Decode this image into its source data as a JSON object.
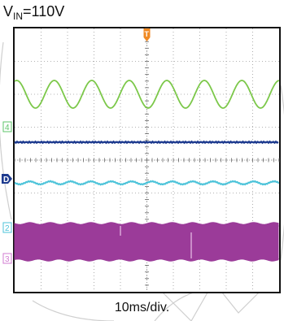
{
  "header": {
    "v_prefix": "V",
    "v_sub": "IN",
    "v_suffix": "=110V"
  },
  "xaxis": {
    "label": "10ms/div."
  },
  "channel_markers": [
    {
      "id": "4",
      "color": "#5ec46a"
    },
    {
      "id": "D",
      "color": "#1e3b8f"
    },
    {
      "id": "2",
      "color": "#4cc3d9"
    },
    {
      "id": "3",
      "color": "#d27bd2"
    }
  ],
  "trigger_marker": {
    "id": "T",
    "color": "#f08a24"
  },
  "chart_data": {
    "type": "line",
    "title": "V_IN=110V",
    "xlabel": "10ms/div.",
    "ylabel": "",
    "x_divisions": 10,
    "y_divisions": 8,
    "x_range_ms": [
      0,
      100
    ],
    "grid": true,
    "series": [
      {
        "channel": "4",
        "waveform": "sine",
        "frequency_hz": 60,
        "cycles_visible": 6,
        "color": "#7cc84a"
      },
      {
        "channel": "D",
        "waveform": "dc_flat",
        "color": "#1e3b8f"
      },
      {
        "channel": "2",
        "waveform": "ripple",
        "frequency_hz": 120,
        "color": "#4cc3d9"
      },
      {
        "channel": "3",
        "waveform": "switching_envelope",
        "color": "#9b3b99"
      }
    ]
  }
}
